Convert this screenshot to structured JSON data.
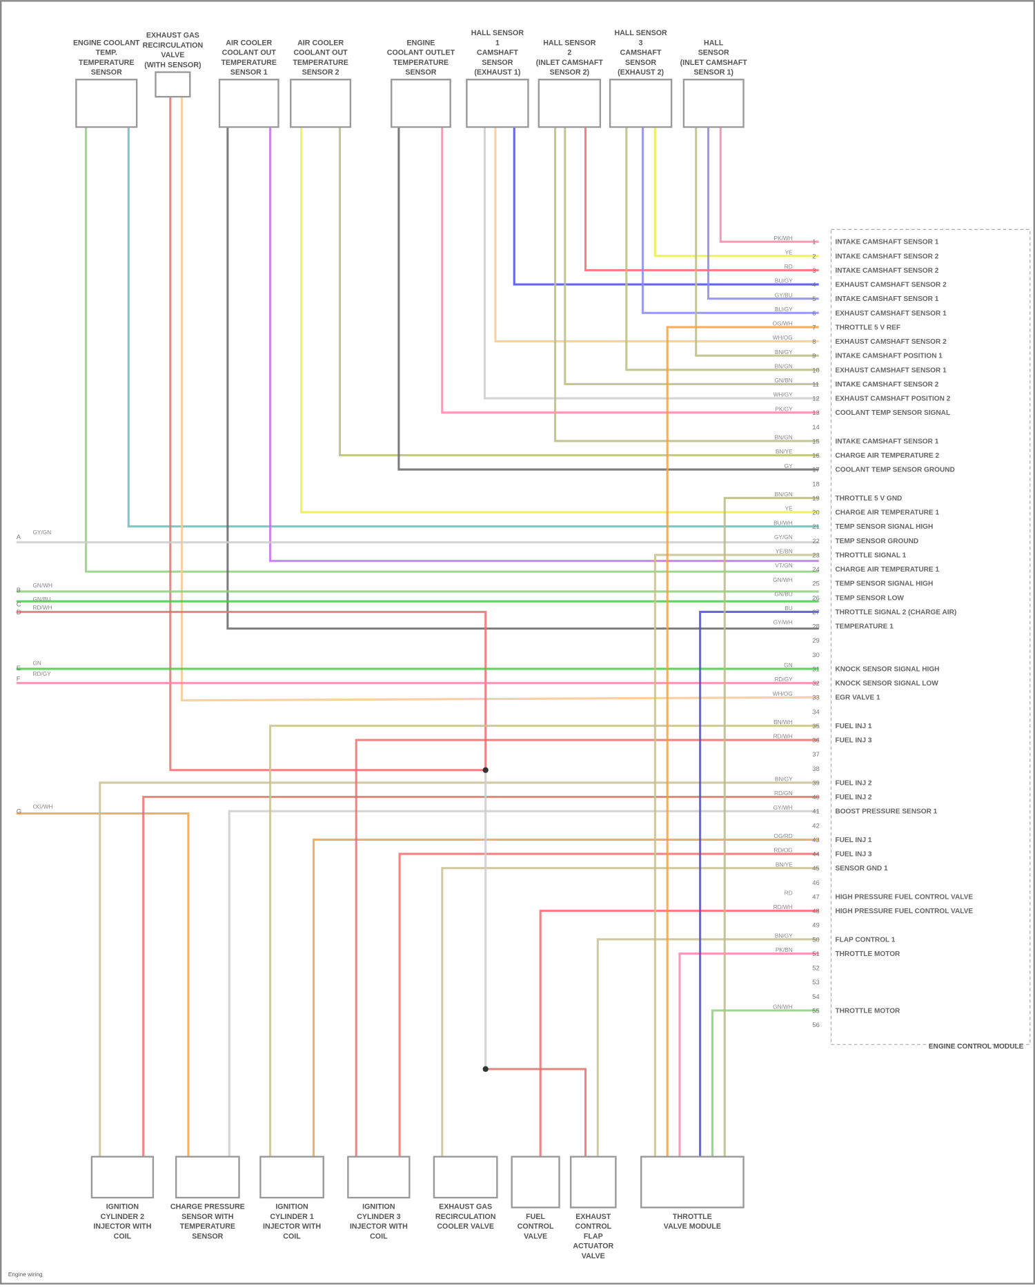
{
  "diagram": {
    "footer": "Engine wiring",
    "ecm_title": "ENGINE CONTROL MODULE",
    "top_components": [
      {
        "id": "ect",
        "lines": [
          "ENGINE COOLANT",
          "TEMP.",
          "TEMPERATURE",
          "SENSOR"
        ]
      },
      {
        "id": "egr",
        "lines": [
          "EXHAUST GAS",
          "RECIRCULATION",
          "VALVE",
          "(WITH SENSOR)"
        ]
      },
      {
        "id": "iat1",
        "lines": [
          "AIR COOLER",
          "COOLANT OUT",
          "TEMPERATURE",
          "SENSOR 1"
        ]
      },
      {
        "id": "iat2",
        "lines": [
          "AIR COOLER",
          "COOLANT OUT",
          "TEMPERATURE",
          "SENSOR 2"
        ]
      },
      {
        "id": "cts",
        "lines": [
          "ENGINE",
          "COOLANT OUTLET",
          "TEMPERATURE",
          "SENSOR"
        ]
      },
      {
        "id": "hall1",
        "lines": [
          "HALL SENSOR",
          "1",
          "CAMSHAFT",
          "SENSOR",
          "(EXHAUST 1)"
        ]
      },
      {
        "id": "hall2",
        "lines": [
          "HALL SENSOR",
          "2",
          "(INLET CAMSHAFT",
          "SENSOR 2)"
        ]
      },
      {
        "id": "hall3",
        "lines": [
          "HALL SENSOR",
          "3",
          "CAMSHAFT",
          "SENSOR",
          "(EXHAUST 2)"
        ]
      },
      {
        "id": "hall4",
        "lines": [
          "HALL",
          "SENSOR",
          "(INLET CAMSHAFT",
          "SENSOR 1)"
        ]
      }
    ],
    "bottom_components": [
      {
        "id": "inj2",
        "lines": [
          "IGNITION",
          "CYLINDER 2",
          "INJECTOR WITH",
          "COIL"
        ]
      },
      {
        "id": "fps",
        "lines": [
          "CHARGE PRESSURE",
          "SENSOR WITH",
          "TEMPERATURE",
          "SENSOR"
        ]
      },
      {
        "id": "inj1",
        "lines": [
          "IGNITION",
          "CYLINDER 1",
          "INJECTOR WITH",
          "COIL"
        ]
      },
      {
        "id": "inj3",
        "lines": [
          "IGNITION",
          "CYLINDER 3",
          "INJECTOR WITH",
          "COIL"
        ]
      },
      {
        "id": "egrc",
        "lines": [
          "EXHAUST GAS",
          "RECIRCULATION",
          "COOLER VALVE"
        ]
      },
      {
        "id": "fcv",
        "lines": [
          "FUEL",
          "CONTROL",
          "VALVE"
        ]
      },
      {
        "id": "ocv",
        "lines": [
          "EXHAUST",
          "CONTROL",
          "FLAP",
          "ACTUATOR",
          "VALVE"
        ]
      },
      {
        "id": "tvm",
        "lines": [
          "THROTTLE",
          "VALVE MODULE"
        ]
      }
    ],
    "left_signals": [
      {
        "code": "GY/GN"
      },
      {
        "code": "GN/WH"
      },
      {
        "code": "GN/BU"
      },
      {
        "code": "RD/WH"
      },
      {
        "code": "GN"
      },
      {
        "code": "RD/GY"
      },
      {
        "code": "OG/WH"
      }
    ],
    "ecm_pins": [
      {
        "n": 1,
        "code": "PK/WH",
        "label": "INTAKE CAMSHAFT SENSOR 1"
      },
      {
        "n": 2,
        "code": "YE",
        "label": "INTAKE CAMSHAFT SENSOR 2"
      },
      {
        "n": 3,
        "code": "RD",
        "label": "INTAKE CAMSHAFT SENSOR 2"
      },
      {
        "n": 4,
        "code": "BU/GY",
        "label": "EXHAUST CAMSHAFT SENSOR 2"
      },
      {
        "n": 5,
        "code": "GY/BU",
        "label": "INTAKE CAMSHAFT SENSOR 1"
      },
      {
        "n": 6,
        "code": "BU/GY",
        "label": "EXHAUST CAMSHAFT SENSOR 1"
      },
      {
        "n": 7,
        "code": "OG/WH",
        "label": "THROTTLE 5 V REF"
      },
      {
        "n": 8,
        "code": "WH/OG",
        "label": "EXHAUST CAMSHAFT SENSOR 2"
      },
      {
        "n": 9,
        "code": "BN/GY",
        "label": "INTAKE CAMSHAFT POSITION 1"
      },
      {
        "n": 10,
        "code": "BN/GN",
        "label": "EXHAUST CAMSHAFT SENSOR 1"
      },
      {
        "n": 11,
        "code": "GN/BN",
        "label": "INTAKE CAMSHAFT SENSOR 2"
      },
      {
        "n": 12,
        "code": "WH/GY",
        "label": "EXHAUST CAMSHAFT POSITION 2"
      },
      {
        "n": 13,
        "code": "PK/GY",
        "label": "COOLANT TEMP SENSOR SIGNAL"
      },
      {
        "n": 15,
        "code": "BN/GN",
        "label": "INTAKE CAMSHAFT SENSOR 1"
      },
      {
        "n": 16,
        "code": "BN/YE",
        "label": "CHARGE AIR TEMPERATURE 2"
      },
      {
        "n": 17,
        "code": "GY",
        "label": "COOLANT TEMP SENSOR GROUND"
      },
      {
        "n": 19,
        "code": "BN/GN",
        "label": "THROTTLE 5 V GND"
      },
      {
        "n": 20,
        "code": "YE",
        "label": "CHARGE AIR TEMPERATURE 1"
      },
      {
        "n": 21,
        "code": "BU/WH",
        "label": "TEMP SENSOR SIGNAL HIGH"
      },
      {
        "n": 22,
        "code": "GY/GN",
        "label": "TEMP SENSOR GROUND"
      },
      {
        "n": 23,
        "code": "YE/BN",
        "label": "THROTTLE SIGNAL 1"
      },
      {
        "n": 24,
        "code": "VT/GN",
        "label": "CHARGE AIR TEMPERATURE 1"
      },
      {
        "n": 25,
        "code": "GN/WH",
        "label": "TEMP SENSOR SIGNAL HIGH"
      },
      {
        "n": 26,
        "code": "GN/BU",
        "label": "TEMP SENSOR LOW"
      },
      {
        "n": 27,
        "code": "BU",
        "label": "THROTTLE SIGNAL 2 (CHARGE AIR)"
      },
      {
        "n": 28,
        "code": "GY/WH",
        "label": "TEMPERATURE 1"
      },
      {
        "n": 31,
        "code": "GN",
        "label": "KNOCK SENSOR SIGNAL HIGH"
      },
      {
        "n": 32,
        "code": "RD/GY",
        "label": "KNOCK SENSOR SIGNAL LOW"
      },
      {
        "n": 33,
        "code": "WH/OG",
        "label": "EGR VALVE 1"
      },
      {
        "n": 35,
        "code": "BN/WH",
        "label": "FUEL INJ 1"
      },
      {
        "n": 36,
        "code": "RD/WH",
        "label": "FUEL INJ 3"
      },
      {
        "n": 39,
        "code": "BN/GY",
        "label": "FUEL INJ 2"
      },
      {
        "n": 40,
        "code": "RD/GN",
        "label": "FUEL INJ 2"
      },
      {
        "n": 41,
        "code": "GY/WH",
        "label": "BOOST PRESSURE SENSOR 1"
      },
      {
        "n": 43,
        "code": "OG/RD",
        "label": "FUEL INJ 1"
      },
      {
        "n": 44,
        "code": "RD/OG",
        "label": "FUEL INJ 3"
      },
      {
        "n": 45,
        "code": "BN/YE",
        "label": "SENSOR GND 1"
      },
      {
        "n": 47,
        "code": "RD",
        "label": "HIGH PRESSURE FUEL CONTROL VALVE"
      },
      {
        "n": 48,
        "code": "RD/WH",
        "label": "HIGH PRESSURE FUEL CONTROL VALVE"
      },
      {
        "n": 50,
        "code": "BN/GY",
        "label": "FLAP CONTROL 1"
      },
      {
        "n": 51,
        "code": "PK/BN",
        "label": "THROTTLE MOTOR"
      },
      {
        "n": 55,
        "code": "GN/WH",
        "label": "THROTTLE MOTOR"
      }
    ],
    "wire_colors": {
      "green": "#8ccf7a",
      "teal": "#6bbcb8",
      "red": "#f36c6c",
      "peach": "#f8c890",
      "gray": "#666666",
      "purple": "#c76cf5",
      "yellow": "#eeee44",
      "olive": "#bcbc80",
      "pink": "#f48aa8",
      "blue": "#4a4af2",
      "lightblue": "#8a8af0",
      "lightgray": "#cccccc",
      "orange": "#f7a040",
      "tan": "#c8c090",
      "bgreen": "#44cc44"
    }
  }
}
